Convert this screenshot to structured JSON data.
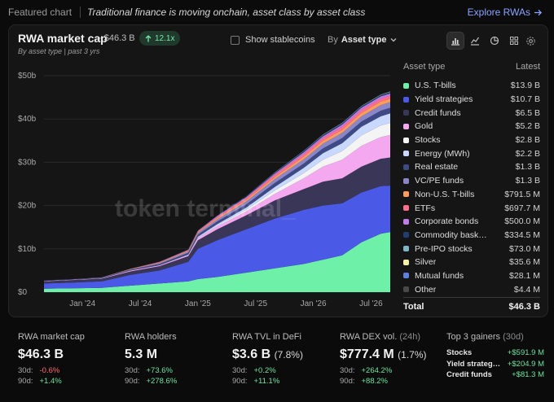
{
  "topbar": {
    "featured": "Featured chart",
    "subtitle": "Traditional finance is moving onchain, asset class by asset class",
    "explore": "Explore RWAs",
    "explore_icon": "arrow-right-icon"
  },
  "card": {
    "title": "RWA market cap",
    "value": "· $46.3 B",
    "badge": "12.1x",
    "subtitle": "By asset type | past 3 yrs",
    "show_stablecoins": "Show stablecoins",
    "groupby_prefix": "By",
    "groupby_value": "Asset type",
    "view_icons": [
      "bar-chart-icon",
      "line-chart-icon",
      "pie-chart-icon",
      "grid-icon"
    ],
    "settings_icon": "gear-icon",
    "watermark": "token terminal_"
  },
  "legend": {
    "header_left": "Asset type",
    "header_right": "Latest",
    "items": [
      {
        "name": "U.S. T-bills",
        "value": "$13.9 B",
        "color": "#6ef0a8"
      },
      {
        "name": "Yield strategies",
        "value": "$10.7 B",
        "color": "#4a5ae6"
      },
      {
        "name": "Credit funds",
        "value": "$6.5 B",
        "color": "#3a3658"
      },
      {
        "name": "Gold",
        "value": "$5.2 B",
        "color": "#f4a8f0"
      },
      {
        "name": "Stocks",
        "value": "$2.8 B",
        "color": "#f4f4f4"
      },
      {
        "name": "Energy (MWh)",
        "value": "$2.2 B",
        "color": "#c9d8ff"
      },
      {
        "name": "Real estate",
        "value": "$1.3 B",
        "color": "#3d4a86"
      },
      {
        "name": "VC/PE funds",
        "value": "$1.3 B",
        "color": "#8b86c7"
      },
      {
        "name": "Non-U.S. T-bills",
        "value": "$791.5 M",
        "color": "#ff9d5c"
      },
      {
        "name": "ETFs",
        "value": "$697.7 M",
        "color": "#ff6f8f"
      },
      {
        "name": "Corporate bonds",
        "value": "$500.0 M",
        "color": "#c07be8"
      },
      {
        "name": "Commodity bask…",
        "value": "$334.5 M",
        "color": "#1f3f6e"
      },
      {
        "name": "Pre-IPO stocks",
        "value": "$73.0 M",
        "color": "#7fb6c4"
      },
      {
        "name": "Silver",
        "value": "$35.6 M",
        "color": "#f7f3a6"
      },
      {
        "name": "Mutual funds",
        "value": "$28.1 M",
        "color": "#5f7fe0"
      },
      {
        "name": "Other",
        "value": "$4.4 M",
        "color": "#4a4a4a"
      }
    ],
    "total_label": "Total",
    "total_value": "$46.3 B"
  },
  "chart_data": {
    "type": "area",
    "stacked": true,
    "x": [
      "2023-09",
      "2023-12",
      "2024-03",
      "2024-06",
      "2024-09",
      "2024-12",
      "2025-01",
      "2025-03",
      "2025-06",
      "2025-09",
      "2025-12",
      "2026-02",
      "2026-04",
      "2026-06",
      "2026-08",
      "2026-09"
    ],
    "x_ticks": [
      "Jan '24",
      "Jul '24",
      "Jan '25",
      "Jul '25",
      "Jan '26",
      "Jul '26"
    ],
    "y_ticks": [
      "$0",
      "$10b",
      "$20b",
      "$30b",
      "$40b",
      "$50b"
    ],
    "ylim": [
      0,
      50
    ],
    "grid": true,
    "legend_position": "right",
    "series": [
      {
        "name": "U.S. T-bills",
        "values": [
          0.8,
          0.9,
          1.0,
          1.5,
          2.0,
          2.5,
          3.0,
          3.5,
          4.5,
          5.5,
          6.5,
          7.5,
          8.5,
          11.5,
          13.5,
          13.9
        ]
      },
      {
        "name": "Yield strategies",
        "values": [
          1.2,
          1.3,
          1.5,
          2.5,
          3.0,
          4.5,
          7.0,
          8.5,
          10.0,
          11.5,
          12.5,
          12.5,
          12.0,
          11.5,
          11.0,
          10.7
        ]
      },
      {
        "name": "Credit funds",
        "values": [
          0.5,
          0.6,
          0.6,
          0.8,
          1.0,
          1.3,
          2.0,
          2.5,
          3.2,
          4.2,
          4.8,
          5.5,
          5.8,
          6.0,
          6.3,
          6.5
        ]
      },
      {
        "name": "Gold",
        "values": [
          0.1,
          0.1,
          0.1,
          0.2,
          0.2,
          0.3,
          0.5,
          0.7,
          0.9,
          1.5,
          2.5,
          3.5,
          4.3,
          4.8,
          5.0,
          5.2
        ]
      },
      {
        "name": "Stocks",
        "values": [
          0.0,
          0.0,
          0.0,
          0.0,
          0.0,
          0.0,
          0.1,
          0.2,
          0.4,
          0.8,
          1.2,
          1.6,
          2.0,
          2.4,
          2.7,
          2.8
        ]
      },
      {
        "name": "Energy (MWh)",
        "values": [
          0.0,
          0.0,
          0.0,
          0.0,
          0.0,
          0.1,
          0.2,
          0.3,
          0.5,
          0.8,
          1.2,
          1.5,
          1.8,
          2.0,
          2.1,
          2.2
        ]
      },
      {
        "name": "Real estate",
        "values": [
          0.1,
          0.1,
          0.1,
          0.2,
          0.3,
          0.4,
          0.5,
          0.6,
          0.7,
          0.9,
          1.0,
          1.1,
          1.2,
          1.2,
          1.3,
          1.3
        ]
      },
      {
        "name": "VC/PE funds",
        "values": [
          0.0,
          0.0,
          0.1,
          0.1,
          0.2,
          0.3,
          0.4,
          0.5,
          0.7,
          0.9,
          1.0,
          1.1,
          1.2,
          1.2,
          1.3,
          1.3
        ]
      },
      {
        "name": "Non-U.S. T-bills",
        "values": [
          0.0,
          0.0,
          0.0,
          0.1,
          0.1,
          0.2,
          0.2,
          0.3,
          0.4,
          0.5,
          0.6,
          0.7,
          0.7,
          0.8,
          0.8,
          0.79
        ]
      },
      {
        "name": "ETFs",
        "values": [
          0.0,
          0.0,
          0.0,
          0.0,
          0.1,
          0.1,
          0.2,
          0.3,
          0.4,
          0.5,
          0.6,
          0.6,
          0.7,
          0.7,
          0.7,
          0.7
        ]
      },
      {
        "name": "Corporate bonds",
        "values": [
          0.0,
          0.0,
          0.0,
          0.0,
          0.1,
          0.1,
          0.1,
          0.2,
          0.2,
          0.3,
          0.4,
          0.4,
          0.5,
          0.5,
          0.5,
          0.5
        ]
      },
      {
        "name": "Commodity bask…",
        "values": [
          0.0,
          0.0,
          0.0,
          0.0,
          0.0,
          0.1,
          0.1,
          0.1,
          0.2,
          0.2,
          0.3,
          0.3,
          0.3,
          0.3,
          0.3,
          0.33
        ]
      },
      {
        "name": "Pre-IPO stocks",
        "values": [
          0.0,
          0.0,
          0.0,
          0.0,
          0.0,
          0.0,
          0.0,
          0.0,
          0.0,
          0.03,
          0.05,
          0.06,
          0.07,
          0.07,
          0.07,
          0.07
        ]
      },
      {
        "name": "Silver",
        "values": [
          0.0,
          0.0,
          0.0,
          0.0,
          0.0,
          0.0,
          0.0,
          0.01,
          0.01,
          0.02,
          0.02,
          0.03,
          0.03,
          0.03,
          0.04,
          0.04
        ]
      },
      {
        "name": "Mutual funds",
        "values": [
          0.0,
          0.0,
          0.0,
          0.0,
          0.0,
          0.0,
          0.01,
          0.01,
          0.01,
          0.02,
          0.02,
          0.02,
          0.03,
          0.03,
          0.03,
          0.03
        ]
      },
      {
        "name": "Other",
        "values": [
          0.0,
          0.0,
          0.0,
          0.0,
          0.0,
          0.0,
          0.0,
          0.0,
          0.0,
          0.0,
          0.0,
          0.0,
          0.0,
          0.0,
          0.0,
          0.0
        ]
      }
    ]
  },
  "stats": [
    {
      "label": "RWA market cap",
      "label_muted": "",
      "value": "$46.3 B",
      "value_pct": "",
      "c1_label": "30d:",
      "c1_value": "-0.6%",
      "c1_pos": false,
      "c2_label": "90d:",
      "c2_value": "+1.4%",
      "c2_pos": true
    },
    {
      "label": "RWA holders",
      "label_muted": "",
      "value": "5.3 M",
      "value_pct": "",
      "c1_label": "30d:",
      "c1_value": "+73.6%",
      "c1_pos": true,
      "c2_label": "90d:",
      "c2_value": "+278.6%",
      "c2_pos": true
    },
    {
      "label": "RWA TVL in DeFi",
      "label_muted": "",
      "value": "$3.6 B",
      "value_pct": "(7.8%)",
      "c1_label": "30d:",
      "c1_value": "+0.2%",
      "c1_pos": true,
      "c2_label": "90d:",
      "c2_value": "+11.1%",
      "c2_pos": true
    },
    {
      "label": "RWA DEX vol.",
      "label_muted": "(24h)",
      "value": "$777.4 M",
      "value_pct": "(1.7%)",
      "c1_label": "30d:",
      "c1_value": "+264.2%",
      "c1_pos": true,
      "c2_label": "90d:",
      "c2_value": "+88.2%",
      "c2_pos": true
    }
  ],
  "gainers": {
    "label": "Top 3 gainers",
    "label_muted": "(30d)",
    "items": [
      {
        "name": "Stocks",
        "value": "+$591.9 M"
      },
      {
        "name": "Yield strateg…",
        "value": "+$204.9 M"
      },
      {
        "name": "Credit funds",
        "value": "+$81.3 M"
      }
    ]
  }
}
